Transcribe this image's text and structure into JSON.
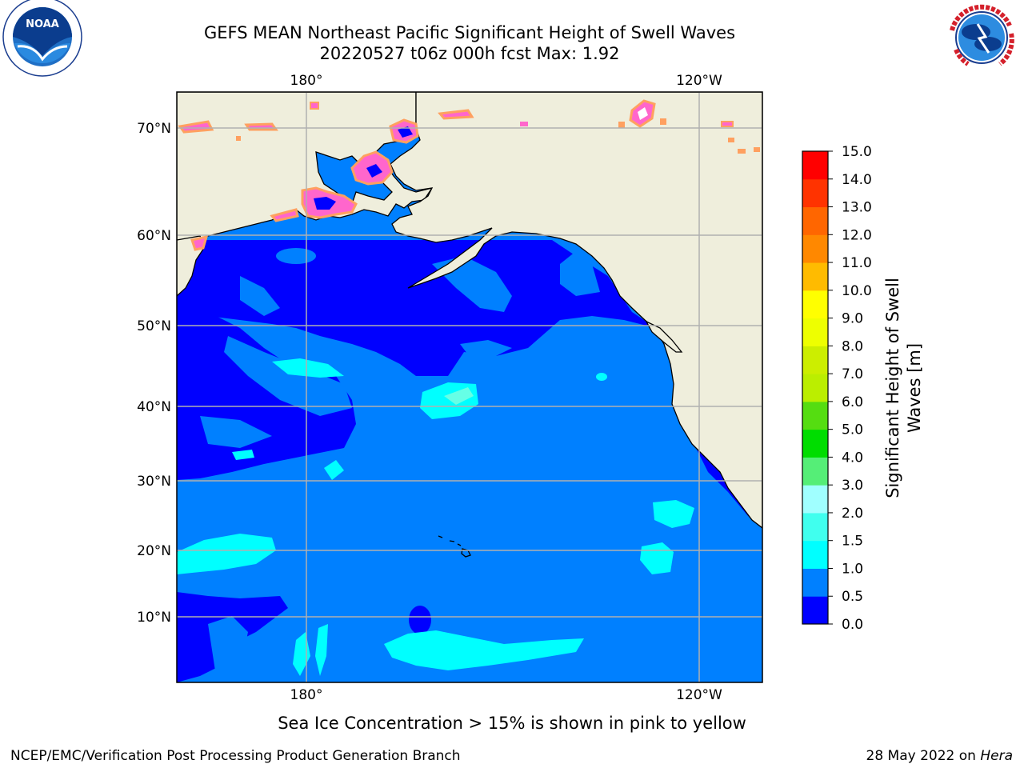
{
  "header": {
    "title": "GEFS MEAN Northeast Pacific Significant Height of Swell Waves",
    "subtitle": "20220527 t06z 000h fcst   Max: 1.92"
  },
  "logos": {
    "left": "NOAA",
    "left_ring": "NATIONAL OCEANIC AND ATMOSPHERIC ADMINISTRATION · U.S. DEPARTMENT OF COMMERCE",
    "right_ring": "NATIONAL WEATHER SERVICE"
  },
  "map": {
    "top_lon_labels": [
      "180°",
      "120°W"
    ],
    "bottom_lon_labels": [
      "180°",
      "120°W"
    ],
    "lat_labels": [
      "70°N",
      "60°N",
      "50°N",
      "40°N",
      "30°N",
      "20°N",
      "10°N"
    ],
    "colors": {
      "land": "#efeedc",
      "wave_0_05": "#0000ff",
      "wave_05_10": "#0080ff",
      "wave_10_15": "#00ffff",
      "wave_15_20": "#66ffe6",
      "ice": "#ff66cc",
      "ice_edge": "#ffa060",
      "grid": "#b0b0b0"
    }
  },
  "colorbar": {
    "label_line1": "Significant Height of Swell",
    "label_line2": "Waves [m]",
    "ticks": [
      "15.0",
      "14.0",
      "13.0",
      "12.0",
      "11.0",
      "10.0",
      "9.0",
      "8.0",
      "7.0",
      "6.0",
      "5.0",
      "4.0",
      "3.0",
      "2.0",
      "1.5",
      "1.0",
      "0.5",
      "0.0"
    ],
    "bins": [
      {
        "min": 0.0,
        "max": 0.5,
        "color": "#0000ff"
      },
      {
        "min": 0.5,
        "max": 1.0,
        "color": "#0080ff"
      },
      {
        "min": 1.0,
        "max": 1.5,
        "color": "#00ffff"
      },
      {
        "min": 1.5,
        "max": 2.0,
        "color": "#40ffee"
      },
      {
        "min": 2.0,
        "max": 3.0,
        "color": "#a0ffff"
      },
      {
        "min": 3.0,
        "max": 4.0,
        "color": "#55ee77"
      },
      {
        "min": 4.0,
        "max": 5.0,
        "color": "#00dd00"
      },
      {
        "min": 5.0,
        "max": 6.0,
        "color": "#55dd11"
      },
      {
        "min": 6.0,
        "max": 7.0,
        "color": "#bbee00"
      },
      {
        "min": 7.0,
        "max": 8.0,
        "color": "#ccee00"
      },
      {
        "min": 8.0,
        "max": 9.0,
        "color": "#eeff00"
      },
      {
        "min": 9.0,
        "max": 10.0,
        "color": "#ffff00"
      },
      {
        "min": 10.0,
        "max": 11.0,
        "color": "#ffbb00"
      },
      {
        "min": 11.0,
        "max": 12.0,
        "color": "#ff8800"
      },
      {
        "min": 12.0,
        "max": 13.0,
        "color": "#ff6600"
      },
      {
        "min": 13.0,
        "max": 14.0,
        "color": "#ff3300"
      },
      {
        "min": 14.0,
        "max": 15.0,
        "color": "#ff0000"
      }
    ]
  },
  "footnote": "Sea Ice Concentration > 15% is shown in pink to yellow",
  "footer": {
    "left": "NCEP/EMC/Verification Post Processing Product Generation Branch",
    "right_prefix": "28 May 2022 on ",
    "right_host": "Hera"
  }
}
